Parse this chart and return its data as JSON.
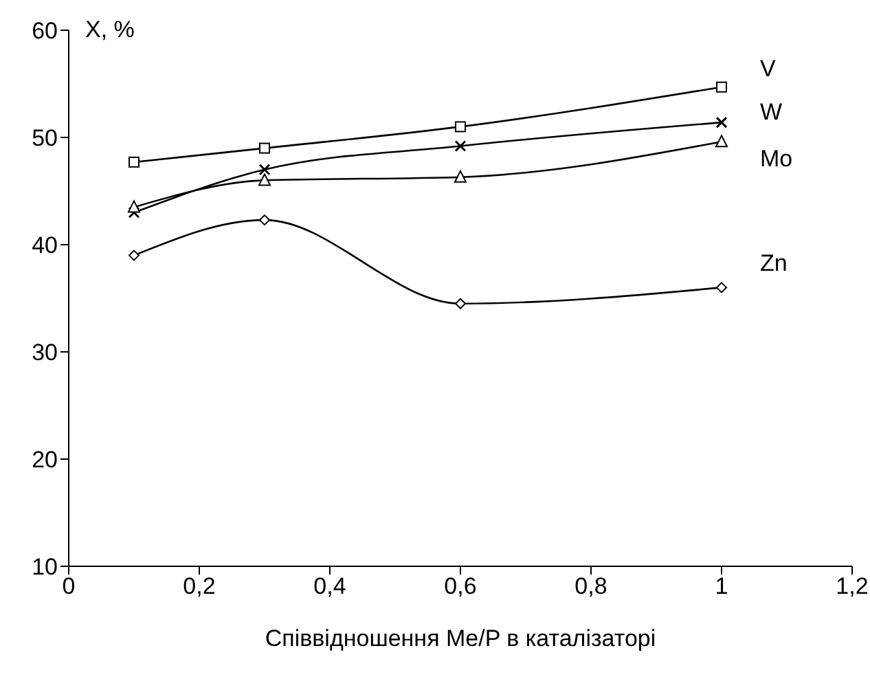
{
  "chart_data": {
    "type": "line",
    "xlabel": "Співвідношення Me/P в каталізаторі",
    "ylabel": "X, %",
    "x": [
      0.1,
      0.3,
      0.6,
      1
    ],
    "series": [
      {
        "name": "V",
        "color": "#000000",
        "marker": "square",
        "values": [
          47.7,
          49,
          51,
          54.7
        ]
      },
      {
        "name": "W",
        "color": "#000000",
        "marker": "cross",
        "values": [
          43,
          47,
          49.2,
          51.4
        ]
      },
      {
        "name": "Mo",
        "color": "#000000",
        "marker": "triangle",
        "values": [
          43.5,
          46,
          46.3,
          49.6
        ]
      },
      {
        "name": "Zn",
        "color": "#000000",
        "marker": "diamond",
        "values": [
          39,
          42.3,
          34.5,
          36
        ]
      }
    ],
    "xlim": [
      0,
      1.2
    ],
    "xticks": [
      {
        "value": 0,
        "label": "0"
      },
      {
        "value": 0.2,
        "label": "0,2"
      },
      {
        "value": 0.4,
        "label": "0,4"
      },
      {
        "value": 0.6,
        "label": "0,6"
      },
      {
        "value": 0.8,
        "label": "0,8"
      },
      {
        "value": 1,
        "label": "1"
      },
      {
        "value": 1.2,
        "label": "1,2"
      }
    ],
    "ylim": [
      10,
      60
    ],
    "yticks": [
      10,
      20,
      30,
      40,
      50,
      60
    ],
    "grid": false,
    "legend": false
  }
}
